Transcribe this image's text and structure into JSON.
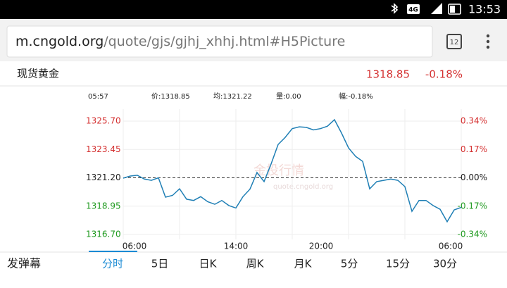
{
  "status_bar": {
    "time": "13:53",
    "network": "4G"
  },
  "browser": {
    "url_domain": "m.cngold.org",
    "url_path": "/quote/gjs/gjhj_xhhj.html#H5Picture",
    "tab_count": "12"
  },
  "quote": {
    "name": "现货黄金",
    "price": "1318.85",
    "change": "-0.18%"
  },
  "info": [
    "05:57",
    "价:1318.85",
    "均:1321.22",
    "量:0.00",
    "幅:-0.18%"
  ],
  "watermark": {
    "text": "金投行情",
    "url": "quote.cngold.org"
  },
  "chart_data": {
    "type": "line",
    "color": "#1f7fb5",
    "values": [
      1321.17,
      1321.34,
      1321.4,
      1321.1,
      1321.0,
      1321.2,
      1319.66,
      1319.8,
      1320.33,
      1319.5,
      1319.4,
      1319.7,
      1319.3,
      1319.1,
      1319.4,
      1319.0,
      1318.8,
      1319.7,
      1320.3,
      1321.62,
      1320.9,
      1322.3,
      1323.85,
      1324.41,
      1325.1,
      1325.25,
      1325.2,
      1325.0,
      1325.1,
      1325.3,
      1325.81,
      1324.75,
      1323.57,
      1322.9,
      1322.5,
      1320.33,
      1320.9,
      1321.0,
      1321.1,
      1321.0,
      1320.5,
      1318.54,
      1319.4,
      1319.4,
      1319.0,
      1318.7,
      1317.71,
      1318.65,
      1318.85
    ],
    "ylim": [
      1316.7,
      1325.7
    ],
    "yticks": [
      {
        "value": 1316.7,
        "label": "1316.70"
      },
      1318.95,
      {
        "value": 1321.2,
        "label": "1321.20"
      },
      1323.45,
      {
        "value": 1325.7,
        "label": "1325.70"
      }
    ],
    "y2lim": [
      -0.34,
      0.34
    ],
    "y2ticks": [
      {
        "value": -0.34,
        "label": "-0.34%"
      },
      {
        "value": -0.17,
        "label": "-0.17%"
      },
      {
        "value": 0,
        "label": "0.00%"
      },
      {
        "value": 0.17,
        "label": "0.17%"
      },
      {
        "value": 0.34,
        "label": "0.34%"
      }
    ],
    "reference_line": 1321.2,
    "xtick_labels": [
      "06:00",
      "14:00",
      "20:00",
      "06:00"
    ],
    "grid": true
  },
  "tabs": {
    "danmaku": "发弹幕",
    "items": [
      "分时",
      "5日",
      "日K",
      "周K",
      "月K",
      "5分",
      "15分",
      "30分"
    ],
    "selected": 0
  }
}
